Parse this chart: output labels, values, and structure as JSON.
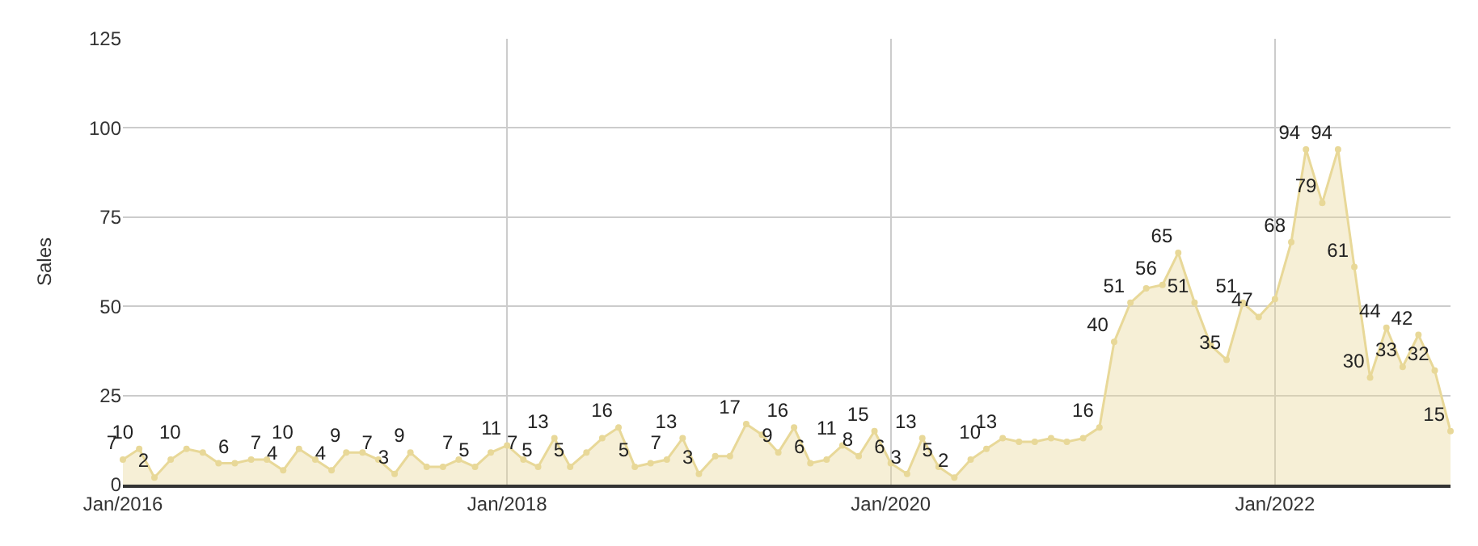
{
  "chart_data": {
    "type": "area",
    "ylabel": "Sales",
    "x": [
      "2016-01",
      "2016-02",
      "2016-03",
      "2016-04",
      "2016-05",
      "2016-06",
      "2016-07",
      "2016-08",
      "2016-09",
      "2016-10",
      "2016-11",
      "2016-12",
      "2017-01",
      "2017-02",
      "2017-03",
      "2017-04",
      "2017-05",
      "2017-06",
      "2017-07",
      "2017-08",
      "2017-09",
      "2017-10",
      "2017-11",
      "2017-12",
      "2018-01",
      "2018-02",
      "2018-03",
      "2018-04",
      "2018-05",
      "2018-06",
      "2018-07",
      "2018-08",
      "2018-09",
      "2018-10",
      "2018-11",
      "2018-12",
      "2019-01",
      "2019-02",
      "2019-03",
      "2019-04",
      "2019-05",
      "2019-06",
      "2019-07",
      "2019-08",
      "2019-09",
      "2019-10",
      "2019-11",
      "2019-12",
      "2020-01",
      "2020-02",
      "2020-03",
      "2020-04",
      "2020-05",
      "2020-06",
      "2020-07",
      "2020-08",
      "2020-09",
      "2020-10",
      "2020-11",
      "2020-12",
      "2021-01",
      "2021-02",
      "2021-03",
      "2021-04",
      "2021-05",
      "2021-06",
      "2021-07",
      "2021-08",
      "2021-09",
      "2021-10",
      "2021-11",
      "2021-12",
      "2022-01",
      "2022-02",
      "2022-03",
      "2022-04",
      "2022-05",
      "2022-06",
      "2022-07",
      "2022-08",
      "2022-09",
      "2022-10",
      "2022-11",
      "2022-12"
    ],
    "series": [
      {
        "color": "#e8d898",
        "values": [
          7,
          10,
          2,
          7,
          10,
          9,
          6,
          6,
          7,
          7,
          4,
          10,
          7,
          4,
          9,
          9,
          7,
          3,
          9,
          5,
          5,
          7,
          5,
          9,
          11,
          7,
          5,
          13,
          5,
          9,
          13,
          16,
          5,
          6,
          7,
          13,
          3,
          8,
          8,
          17,
          14,
          9,
          16,
          6,
          7,
          11,
          8,
          15,
          6,
          3,
          13,
          5,
          2,
          7,
          10,
          13,
          12,
          12,
          13,
          12,
          13,
          16,
          40,
          51,
          55,
          56,
          65,
          51,
          39,
          35,
          51,
          47,
          52,
          68,
          94,
          79,
          94,
          61,
          30,
          44,
          33,
          42,
          32,
          15
        ],
        "value_labels": [
          "7",
          "10",
          "2",
          null,
          "10",
          null,
          null,
          "6",
          null,
          "7",
          "4",
          "10",
          null,
          "4",
          "9",
          null,
          "7",
          "3",
          "9",
          null,
          null,
          "7",
          "5",
          null,
          "11",
          "7",
          "5",
          "13",
          "5",
          null,
          null,
          "16",
          "5",
          null,
          "7",
          "13",
          "3",
          null,
          null,
          "17",
          null,
          "9",
          "16",
          "6",
          null,
          "11",
          "8",
          "15",
          "6",
          "3",
          "13",
          "5",
          "2",
          null,
          "10",
          "13",
          null,
          null,
          null,
          null,
          null,
          "16",
          "40",
          "51",
          null,
          "56",
          "65",
          "51",
          null,
          "35",
          "51",
          "47",
          null,
          "68",
          "94",
          "79",
          "94",
          "61",
          "30",
          "44",
          "33",
          "42",
          "32",
          "15"
        ]
      }
    ],
    "xlim": [
      "2016-01",
      "2022-12"
    ],
    "xticks": [
      {
        "value": "2016-01",
        "label": "Jan/2016"
      },
      {
        "value": "2018-01",
        "label": "Jan/2018"
      },
      {
        "value": "2020-01",
        "label": "Jan/2020"
      },
      {
        "value": "2022-01",
        "label": "Jan/2022"
      }
    ],
    "ylim": [
      0,
      125
    ],
    "yticks": [
      0,
      25,
      50,
      75,
      100,
      125
    ],
    "grid": true,
    "marker": "circle",
    "line_style": "solid"
  }
}
